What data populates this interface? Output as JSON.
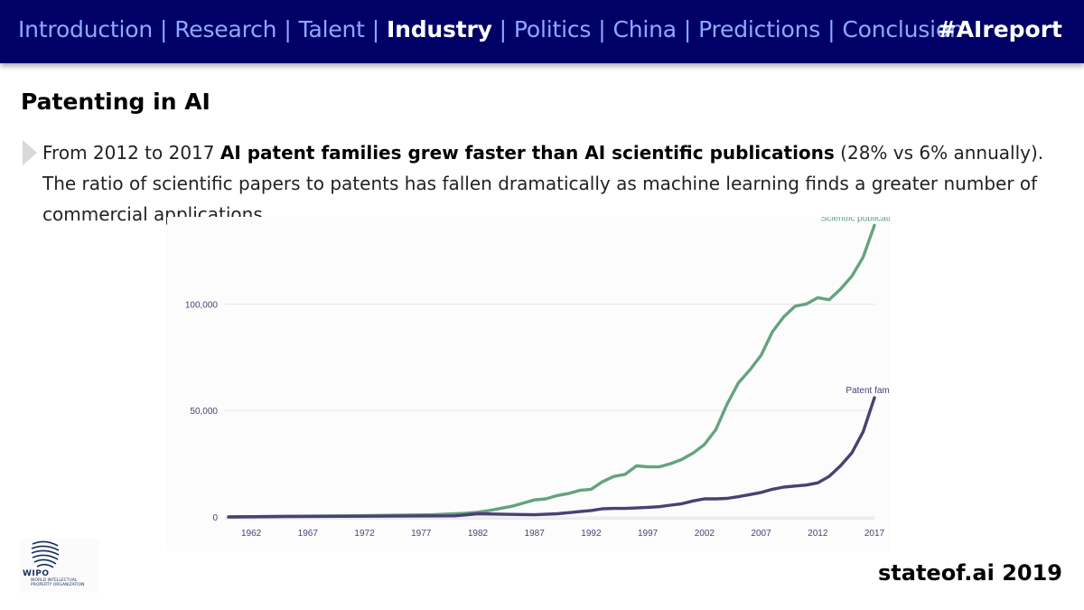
{
  "nav": {
    "items": [
      {
        "label": "Introduction",
        "active": false
      },
      {
        "label": "Research",
        "active": false
      },
      {
        "label": "Talent",
        "active": false
      },
      {
        "label": "Industry",
        "active": true
      },
      {
        "label": "Politics",
        "active": false
      },
      {
        "label": "China",
        "active": false
      },
      {
        "label": "Predictions",
        "active": false
      },
      {
        "label": "Conclusion",
        "active": false
      }
    ],
    "separator": "|",
    "hashtag": "#AIreport"
  },
  "slide": {
    "title": "Patenting in AI",
    "text_before": "From 2012 to 2017 ",
    "text_bold": "AI patent families grew faster than AI scientific publications",
    "text_after": " (28% vs 6% annually). The ratio of scientific papers to patents has fallen dramatically as machine learning finds a greater number of commercial applications."
  },
  "colors": {
    "nav_bg": "#000066",
    "nav_text": "#8fa8ff",
    "scientific": "#64a37e",
    "patents": "#4b3f73",
    "axis_text": "#4b3f73"
  },
  "chart_data": {
    "type": "line",
    "title": "",
    "xlabel": "",
    "ylabel": "",
    "xlim": [
      1960,
      2017
    ],
    "ylim": [
      0,
      135000
    ],
    "x_ticks": [
      1962,
      1967,
      1972,
      1977,
      1982,
      1987,
      1992,
      1997,
      2002,
      2007,
      2012,
      2017
    ],
    "y_ticks": [
      {
        "value": 0,
        "label": "0"
      },
      {
        "value": 50000,
        "label": "50,000"
      },
      {
        "value": 100000,
        "label": "100,000"
      }
    ],
    "grid": true,
    "series": [
      {
        "name": "Scientfic publications",
        "color": "#64a37e",
        "x": [
          1960,
          1965,
          1970,
          1975,
          1978,
          1980,
          1981,
          1982,
          1983,
          1984,
          1985,
          1986,
          1987,
          1988,
          1989,
          1990,
          1991,
          1992,
          1993,
          1994,
          1995,
          1996,
          1997,
          1998,
          1999,
          2000,
          2001,
          2002,
          2003,
          2004,
          2005,
          2006,
          2007,
          2008,
          2009,
          2010,
          2011,
          2012,
          2013,
          2014,
          2015,
          2016,
          2017
        ],
        "y": [
          0,
          300,
          500,
          800,
          1000,
          1500,
          1800,
          2200,
          3000,
          4000,
          5000,
          6500,
          8000,
          8500,
          10000,
          11000,
          12500,
          13000,
          16500,
          19000,
          20000,
          24000,
          23500,
          23500,
          25000,
          27000,
          30000,
          34000,
          41000,
          53000,
          63000,
          69000,
          76000,
          87000,
          94000,
          99000,
          100000,
          103000,
          102000,
          107000,
          113000,
          122000,
          137000
        ]
      },
      {
        "name": "Patent families",
        "color": "#4b3f73",
        "x": [
          1960,
          1965,
          1970,
          1975,
          1980,
          1982,
          1985,
          1987,
          1989,
          1990,
          1991,
          1992,
          1993,
          1994,
          1995,
          1996,
          1997,
          1998,
          1999,
          2000,
          2001,
          2002,
          2003,
          2004,
          2005,
          2006,
          2007,
          2008,
          2009,
          2010,
          2011,
          2012,
          2013,
          2014,
          2015,
          2016,
          2017
        ],
        "y": [
          0,
          200,
          300,
          400,
          500,
          1500,
          1200,
          1000,
          1500,
          2000,
          2500,
          3000,
          3800,
          4000,
          4000,
          4200,
          4500,
          4800,
          5500,
          6200,
          7500,
          8500,
          8500,
          8700,
          9500,
          10500,
          11500,
          13000,
          14000,
          14500,
          15000,
          16000,
          19000,
          24000,
          30000,
          40000,
          56000
        ]
      }
    ]
  },
  "footer": {
    "logo_word": "WIPO",
    "logo_sub": "World Intellectual Property Organization",
    "brand": "stateof.ai 2019"
  }
}
